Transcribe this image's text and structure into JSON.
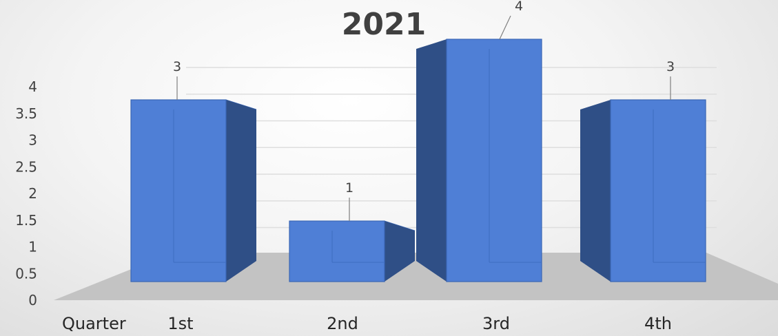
{
  "chart_data": {
    "type": "bar",
    "title": "2021",
    "categories": [
      "1st",
      "2nd",
      "3rd",
      "4th"
    ],
    "values": [
      3,
      1,
      4,
      3
    ],
    "xlabel": "Quarter",
    "ylabel": "",
    "ylim": [
      0,
      4
    ],
    "yticks": [
      "0",
      "0.5",
      "1",
      "1.5",
      "2",
      "2.5",
      "3",
      "3.5",
      "4"
    ],
    "grid": true,
    "legend": "none",
    "colors": {
      "bar_front": "#4f7fd6",
      "bar_side": "#2f4f86",
      "bar_top": "#6a98e6",
      "floor": "#bdbdbd"
    }
  }
}
